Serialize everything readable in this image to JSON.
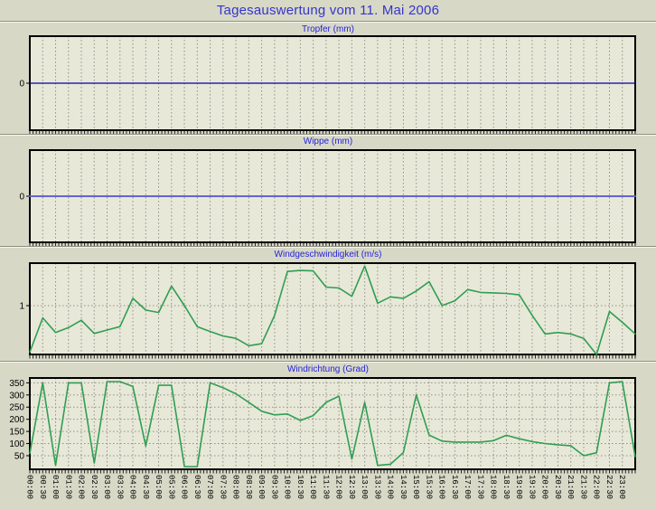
{
  "page": {
    "title": "Tagesauswertung vom 11. Mai 2006"
  },
  "colors": {
    "background": "#d8d8c7",
    "plot_background": "#e8e8d8",
    "grid": "#90908a",
    "plot_border": "#000000",
    "title_blue": "#3535cd",
    "chart_title_blue": "#2323dd",
    "tropfer_line": "#0000a0",
    "wippe_line": "#6363d4",
    "wind_line": "#2f9e53",
    "tick_text": "#000000"
  },
  "x_axis": {
    "labels": [
      "00:00",
      "00:30",
      "01:00",
      "01:30",
      "02:00",
      "02:30",
      "03:00",
      "03:30",
      "04:00",
      "04:30",
      "05:00",
      "05:30",
      "06:00",
      "06:30",
      "07:00",
      "07:30",
      "08:00",
      "08:30",
      "09:00",
      "09:30",
      "10:00",
      "10:30",
      "11:00",
      "11:30",
      "12:00",
      "12:30",
      "13:00",
      "13:30",
      "14:00",
      "14:30",
      "15:00",
      "15:30",
      "16:00",
      "16:30",
      "17:00",
      "17:30",
      "18:00",
      "18:30",
      "19:00",
      "19:30",
      "20:00",
      "20:30",
      "21:00",
      "21:30",
      "22:00",
      "22:30",
      "23:00"
    ]
  },
  "chart_data": [
    {
      "type": "line",
      "title": "Tropfer (mm)",
      "yticks": [
        0
      ],
      "ylim": [
        -1,
        1
      ],
      "points": 48,
      "values_constant": 0,
      "note": "flat line at 0 mm all day"
    },
    {
      "type": "line",
      "title": "Wippe (mm)",
      "yticks": [
        0
      ],
      "ylim": [
        -1,
        1
      ],
      "points": 48,
      "values_constant": 0,
      "note": "flat line at 0 mm all day"
    },
    {
      "type": "line",
      "title": "Windgeschwindigkeit (m/s)",
      "yticks": [
        1
      ],
      "ylim": [
        0,
        1.87
      ],
      "interval": "30 min from 00:00",
      "values": [
        0.05,
        0.75,
        0.45,
        0.55,
        0.7,
        0.43,
        0.5,
        0.57,
        1.15,
        0.91,
        0.86,
        1.4,
        1.0,
        0.57,
        0.47,
        0.38,
        0.33,
        0.18,
        0.22,
        0.8,
        1.7,
        1.72,
        1.71,
        1.38,
        1.36,
        1.19,
        1.81,
        1.05,
        1.18,
        1.15,
        1.3,
        1.49,
        1.0,
        1.1,
        1.33,
        1.27,
        1.26,
        1.25,
        1.22,
        0.8,
        0.42,
        0.45,
        0.42,
        0.33,
        0.0,
        0.88,
        0.66,
        0.42
      ]
    },
    {
      "type": "line",
      "title": "Windrichtung (Grad)",
      "yticks": [
        50,
        100,
        150,
        200,
        250,
        300,
        350
      ],
      "ylim": [
        -6,
        370
      ],
      "interval": "30 min from 00:00",
      "values": [
        60,
        350,
        10,
        350,
        350,
        20,
        355,
        355,
        335,
        90,
        340,
        340,
        5,
        5,
        350,
        330,
        305,
        270,
        233,
        218,
        222,
        195,
        215,
        270,
        295,
        36,
        270,
        10,
        15,
        63,
        300,
        135,
        110,
        106,
        106,
        106,
        112,
        134,
        120,
        108,
        100,
        95,
        91,
        50,
        62,
        350,
        355,
        46
      ]
    }
  ]
}
